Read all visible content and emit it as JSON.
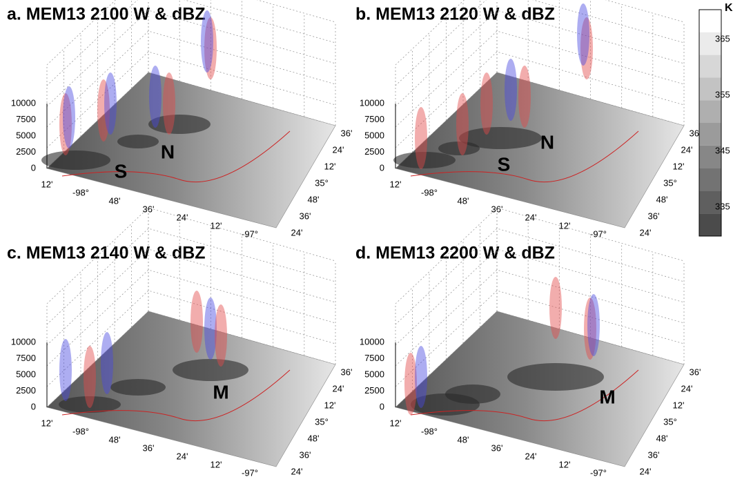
{
  "panels": [
    {
      "title": "a. MEM13 2100 W & dBZ",
      "markers": [
        "S",
        "N"
      ]
    },
    {
      "title": "b. MEM13 2120 W & dBZ",
      "markers": [
        "S",
        "N"
      ]
    },
    {
      "title": "c. MEM13 2140 W & dBZ",
      "markers": [
        "M"
      ]
    },
    {
      "title": "d. MEM13 2200 W & dBZ",
      "markers": [
        "M"
      ]
    }
  ],
  "axes": {
    "z_labels": [
      "10000",
      "7500",
      "5000",
      "2500",
      "0"
    ],
    "lon_labels": [
      "12'",
      "-98°",
      "48'",
      "36'",
      "24'",
      "12'",
      "-97°"
    ],
    "lat_labels": [
      "24'",
      "36'",
      "48'",
      "35°",
      "12'",
      "24'",
      "36'"
    ]
  },
  "colorbar": {
    "unit": "K",
    "labels": [
      "365",
      "355",
      "345",
      "335"
    ]
  }
}
